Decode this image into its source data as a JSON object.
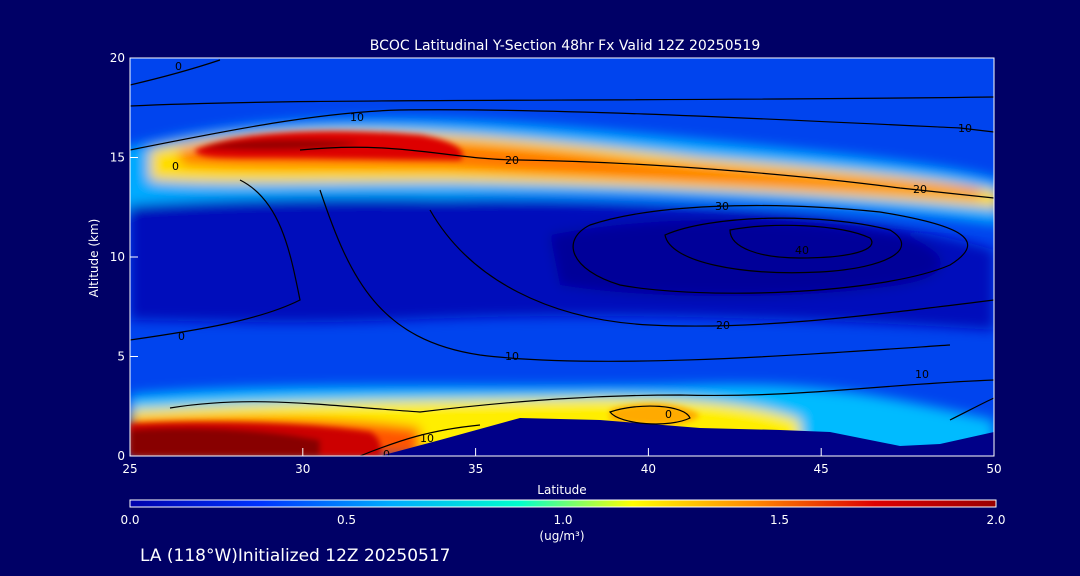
{
  "chart_data": {
    "type": "heatmap",
    "title": "BCOC Latitudinal Y-Section 48hr  Fx Valid 12Z 20250519",
    "xlabel": "Latitude",
    "ylabel": "Altitude (km)",
    "xlim": [
      25,
      50
    ],
    "ylim": [
      0,
      20
    ],
    "x_ticks": [
      "25",
      "30",
      "35",
      "40",
      "45",
      "50"
    ],
    "y_ticks": [
      "0",
      "5",
      "10",
      "15",
      "20"
    ],
    "colorbar": {
      "label": "(ug/m³)",
      "range": [
        0.0,
        2.0
      ],
      "ticks": [
        "0.0",
        "0.5",
        "1.0",
        "1.5",
        "2.0"
      ],
      "colors": [
        "#0000aa",
        "#0033ff",
        "#00aaff",
        "#00ffcc",
        "#ffff00",
        "#ff8800",
        "#dd0000",
        "#990000"
      ]
    },
    "contour_labels": [
      "0",
      "10",
      "20",
      "30",
      "40"
    ],
    "footer": "LA (118°W)Initialized 12Z 20250517"
  },
  "colors": {
    "background": "#000066",
    "terrain": "#000088"
  }
}
